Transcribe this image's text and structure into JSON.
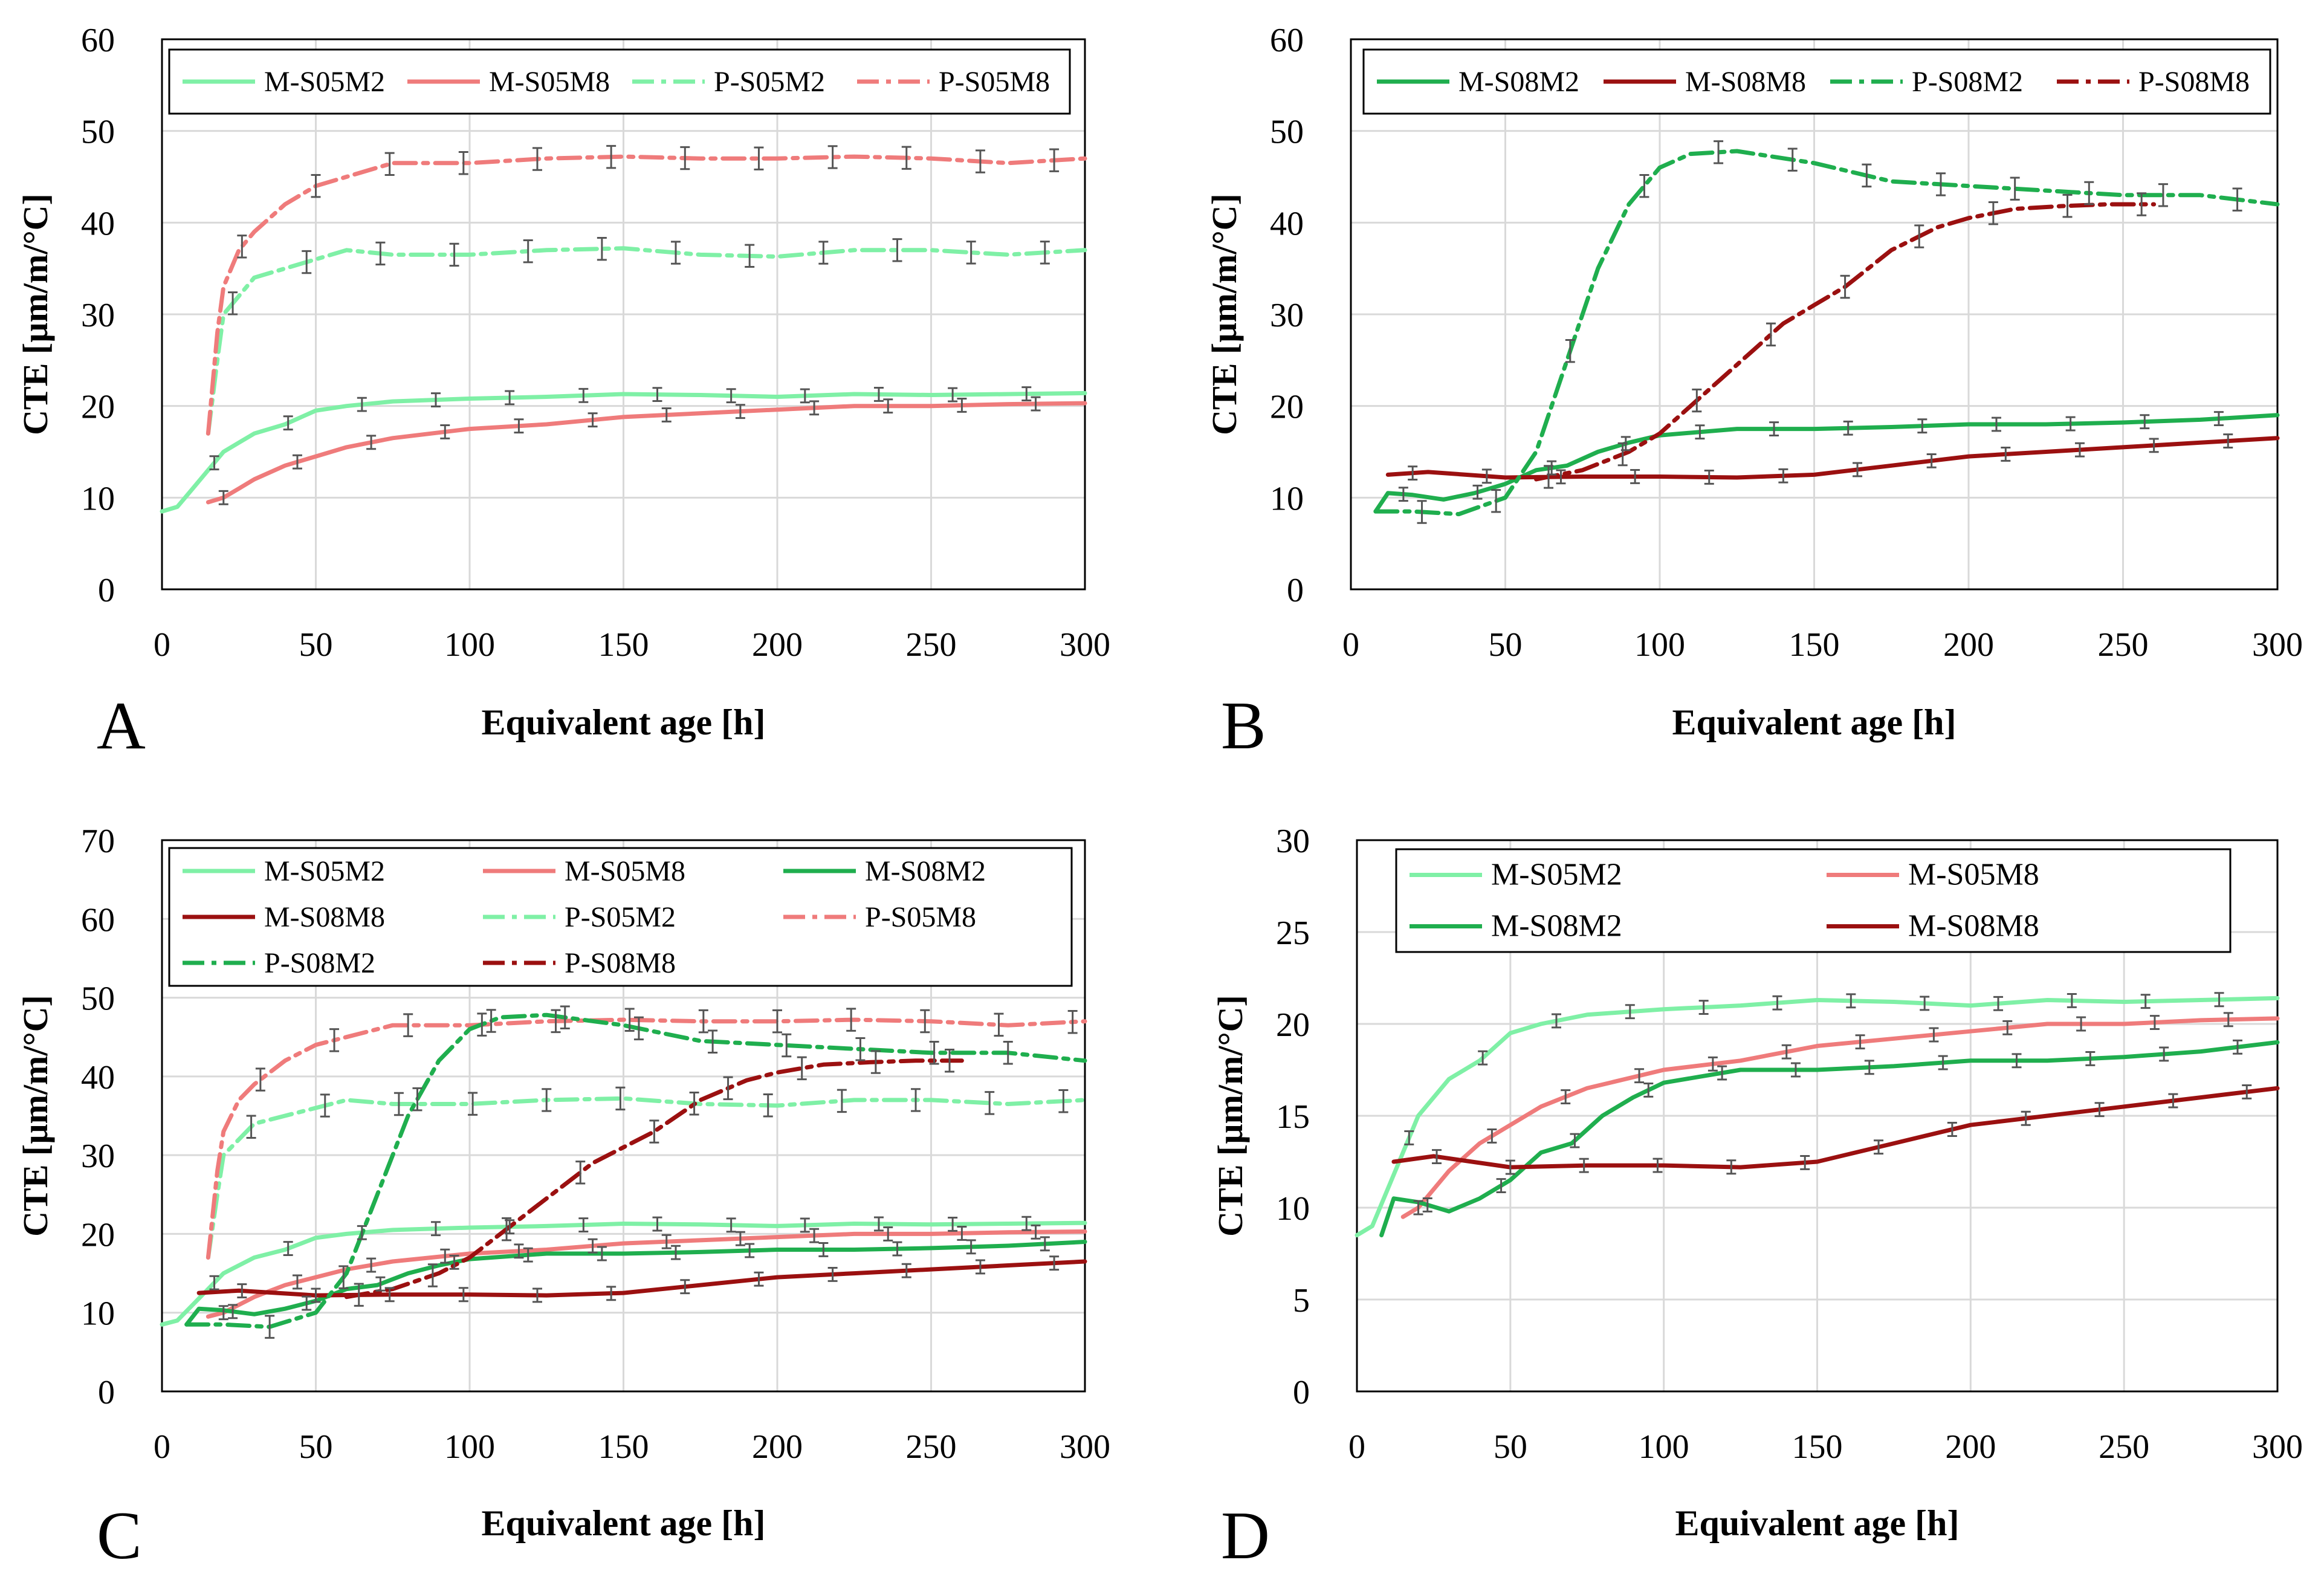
{
  "colors": {
    "M-S05M2": "#7ff0a6",
    "M-S05M8": "#ef7b7b",
    "M-S08M2": "#1fae4e",
    "M-S08M8": "#9b1010",
    "P-S05M2": "#7ff0a6",
    "P-S05M8": "#ef7b7b",
    "P-S08M2": "#1fae4e",
    "P-S08M8": "#9b1010"
  },
  "chart_data": [
    {
      "panel": "A",
      "type": "line",
      "xlabel": "Equivalent age [h]",
      "ylabel": "CTE [µm/m/°C]",
      "xlim": [
        0,
        300
      ],
      "ylim": [
        0,
        60
      ],
      "xticks": [
        "0",
        "50",
        "100",
        "150",
        "200",
        "250",
        "300"
      ],
      "yticks": [
        "0",
        "10",
        "20",
        "30",
        "40",
        "50",
        "60"
      ],
      "legend": [
        "M-S05M2",
        "M-S05M8",
        "P-S05M2",
        "P-S05M8"
      ],
      "series": [
        {
          "name": "M-S05M2",
          "dash": "solid",
          "x": [
            0,
            5,
            10,
            15,
            20,
            25,
            30,
            40,
            50,
            60,
            75,
            100,
            125,
            150,
            175,
            200,
            225,
            250,
            275,
            300
          ],
          "y": [
            8.5,
            9,
            11,
            13,
            15,
            16,
            17,
            18,
            19.5,
            20,
            20.5,
            20.8,
            21,
            21.3,
            21.2,
            21,
            21.3,
            21.2,
            21.3,
            21.4
          ]
        },
        {
          "name": "M-S05M8",
          "dash": "solid",
          "x": [
            15,
            20,
            25,
            30,
            40,
            50,
            60,
            75,
            100,
            125,
            150,
            175,
            200,
            225,
            250,
            275,
            300
          ],
          "y": [
            9.5,
            10,
            11,
            12,
            13.5,
            14.5,
            15.5,
            16.5,
            17.5,
            18,
            18.8,
            19.2,
            19.6,
            20,
            20,
            20.2,
            20.3
          ]
        },
        {
          "name": "P-S05M2",
          "dash": "dashdot",
          "x": [
            15,
            18,
            20,
            25,
            30,
            40,
            50,
            60,
            75,
            100,
            125,
            150,
            175,
            200,
            225,
            250,
            275,
            300
          ],
          "y": [
            17,
            25,
            30,
            32,
            34,
            35,
            36,
            37,
            36.5,
            36.5,
            37,
            37.2,
            36.5,
            36.3,
            37,
            37,
            36.5,
            37
          ]
        },
        {
          "name": "P-S05M8",
          "dash": "dashdot",
          "x": [
            15,
            18,
            20,
            25,
            30,
            40,
            50,
            60,
            75,
            100,
            125,
            150,
            175,
            200,
            225,
            250,
            275,
            300
          ],
          "y": [
            17,
            28,
            33,
            37,
            39,
            42,
            44,
            45,
            46.5,
            46.5,
            47,
            47.2,
            47,
            47,
            47.2,
            47,
            46.5,
            47
          ]
        }
      ]
    },
    {
      "panel": "B",
      "type": "line",
      "xlabel": "Equivalent age [h]",
      "ylabel": "CTE [µm/m/°C]",
      "xlim": [
        0,
        300
      ],
      "ylim": [
        0,
        60
      ],
      "xticks": [
        "0",
        "50",
        "100",
        "150",
        "200",
        "250",
        "300"
      ],
      "yticks": [
        "0",
        "10",
        "20",
        "30",
        "40",
        "50",
        "60"
      ],
      "legend": [
        "M-S08M2",
        "M-S08M8",
        "P-S08M2",
        "P-S08M8"
      ],
      "series": [
        {
          "name": "M-S08M2",
          "dash": "solid",
          "x": [
            8,
            12,
            20,
            30,
            40,
            50,
            60,
            70,
            80,
            90,
            100,
            125,
            150,
            175,
            200,
            225,
            250,
            275,
            300
          ],
          "y": [
            8.5,
            10.5,
            10.3,
            9.8,
            10.5,
            11.5,
            13,
            13.5,
            15,
            16,
            16.8,
            17.5,
            17.5,
            17.7,
            18,
            18,
            18.2,
            18.5,
            19
          ]
        },
        {
          "name": "M-S08M8",
          "dash": "solid",
          "x": [
            12,
            25,
            50,
            75,
            100,
            125,
            150,
            175,
            200,
            225,
            250,
            275,
            300
          ],
          "y": [
            12.5,
            12.8,
            12.2,
            12.3,
            12.3,
            12.2,
            12.5,
            13.5,
            14.5,
            15,
            15.5,
            16,
            16.5
          ]
        },
        {
          "name": "P-S08M2",
          "dash": "dashdot",
          "x": [
            8,
            20,
            35,
            50,
            60,
            70,
            80,
            90,
            100,
            110,
            125,
            150,
            175,
            200,
            225,
            250,
            275,
            300
          ],
          "y": [
            8.5,
            8.5,
            8.2,
            10,
            15,
            25,
            35,
            42,
            46,
            47.5,
            47.8,
            46.5,
            44.5,
            44,
            43.5,
            43,
            43,
            42
          ]
        },
        {
          "name": "P-S08M8",
          "dash": "dashdot",
          "x": [
            60,
            75,
            90,
            100,
            110,
            120,
            130,
            140,
            150,
            160,
            175,
            190,
            200,
            215,
            230,
            245,
            260
          ],
          "y": [
            12,
            13,
            15,
            17,
            20,
            23,
            26,
            29,
            31,
            33,
            37,
            39.5,
            40.5,
            41.5,
            41.8,
            42,
            42
          ]
        }
      ]
    },
    {
      "panel": "C",
      "type": "line",
      "xlabel": "Equivalent age [h]",
      "ylabel": "CTE [µm/m/°C]",
      "xlim": [
        0,
        300
      ],
      "ylim": [
        0,
        70
      ],
      "xticks": [
        "0",
        "50",
        "100",
        "150",
        "200",
        "250",
        "300"
      ],
      "yticks": [
        "0",
        "10",
        "20",
        "30",
        "40",
        "50",
        "60",
        "70"
      ],
      "legend": [
        "M-S05M2",
        "M-S05M8",
        "M-S08M2",
        "M-S08M8",
        "P-S05M2",
        "P-S05M8",
        "P-S08M2",
        "P-S08M8"
      ],
      "series": [
        {
          "name": "M-S05M2",
          "dash": "solid",
          "x": [
            0,
            5,
            10,
            15,
            20,
            25,
            30,
            40,
            50,
            60,
            75,
            100,
            125,
            150,
            175,
            200,
            225,
            250,
            275,
            300
          ],
          "y": [
            8.5,
            9,
            11,
            13,
            15,
            16,
            17,
            18,
            19.5,
            20,
            20.5,
            20.8,
            21,
            21.3,
            21.2,
            21,
            21.3,
            21.2,
            21.3,
            21.4
          ]
        },
        {
          "name": "M-S05M8",
          "dash": "solid",
          "x": [
            15,
            20,
            25,
            30,
            40,
            50,
            60,
            75,
            100,
            125,
            150,
            175,
            200,
            225,
            250,
            275,
            300
          ],
          "y": [
            9.5,
            10,
            11,
            12,
            13.5,
            14.5,
            15.5,
            16.5,
            17.5,
            18,
            18.8,
            19.2,
            19.6,
            20,
            20,
            20.2,
            20.3
          ]
        },
        {
          "name": "M-S08M2",
          "dash": "solid",
          "x": [
            8,
            12,
            20,
            30,
            40,
            50,
            60,
            70,
            80,
            90,
            100,
            125,
            150,
            175,
            200,
            225,
            250,
            275,
            300
          ],
          "y": [
            8.5,
            10.5,
            10.3,
            9.8,
            10.5,
            11.5,
            13,
            13.5,
            15,
            16,
            16.8,
            17.5,
            17.5,
            17.7,
            18,
            18,
            18.2,
            18.5,
            19
          ]
        },
        {
          "name": "M-S08M8",
          "dash": "solid",
          "x": [
            12,
            25,
            50,
            75,
            100,
            125,
            150,
            175,
            200,
            225,
            250,
            275,
            300
          ],
          "y": [
            12.5,
            12.8,
            12.2,
            12.3,
            12.3,
            12.2,
            12.5,
            13.5,
            14.5,
            15,
            15.5,
            16,
            16.5
          ]
        },
        {
          "name": "P-S05M2",
          "dash": "dashdot",
          "x": [
            15,
            18,
            20,
            25,
            30,
            40,
            50,
            60,
            75,
            100,
            125,
            150,
            175,
            200,
            225,
            250,
            275,
            300
          ],
          "y": [
            17,
            25,
            30,
            32,
            34,
            35,
            36,
            37,
            36.5,
            36.5,
            37,
            37.2,
            36.5,
            36.3,
            37,
            37,
            36.5,
            37
          ]
        },
        {
          "name": "P-S05M8",
          "dash": "dashdot",
          "x": [
            15,
            18,
            20,
            25,
            30,
            40,
            50,
            60,
            75,
            100,
            125,
            150,
            175,
            200,
            225,
            250,
            275,
            300
          ],
          "y": [
            17,
            28,
            33,
            37,
            39,
            42,
            44,
            45,
            46.5,
            46.5,
            47,
            47.2,
            47,
            47,
            47.2,
            47,
            46.5,
            47
          ]
        },
        {
          "name": "P-S08M2",
          "dash": "dashdot",
          "x": [
            8,
            20,
            35,
            50,
            60,
            70,
            80,
            90,
            100,
            110,
            125,
            150,
            175,
            200,
            225,
            250,
            275,
            300
          ],
          "y": [
            8.5,
            8.5,
            8.2,
            10,
            15,
            25,
            35,
            42,
            46,
            47.5,
            47.8,
            46.5,
            44.5,
            44,
            43.5,
            43,
            43,
            42
          ]
        },
        {
          "name": "P-S08M8",
          "dash": "dashdot",
          "x": [
            60,
            75,
            90,
            100,
            110,
            120,
            130,
            140,
            150,
            160,
            175,
            190,
            200,
            215,
            230,
            245,
            260
          ],
          "y": [
            12,
            13,
            15,
            17,
            20,
            23,
            26,
            29,
            31,
            33,
            37,
            39.5,
            40.5,
            41.5,
            41.8,
            42,
            42
          ]
        }
      ]
    },
    {
      "panel": "D",
      "type": "line",
      "xlabel": "Equivalent age [h]",
      "ylabel": "CTE [µm/m/°C]",
      "xlim": [
        0,
        300
      ],
      "ylim": [
        0,
        30
      ],
      "xticks": [
        "0",
        "50",
        "100",
        "150",
        "200",
        "250",
        "300"
      ],
      "yticks": [
        "0",
        "5",
        "10",
        "15",
        "20",
        "25",
        "30"
      ],
      "legend": [
        "M-S05M2",
        "M-S05M8",
        "M-S08M2",
        "M-S08M8"
      ],
      "series": [
        {
          "name": "M-S05M2",
          "dash": "solid",
          "x": [
            0,
            5,
            10,
            15,
            20,
            25,
            30,
            40,
            50,
            60,
            75,
            100,
            125,
            150,
            175,
            200,
            225,
            250,
            275,
            300
          ],
          "y": [
            8.5,
            9,
            11,
            13,
            15,
            16,
            17,
            18,
            19.5,
            20,
            20.5,
            20.8,
            21,
            21.3,
            21.2,
            21,
            21.3,
            21.2,
            21.3,
            21.4
          ]
        },
        {
          "name": "M-S05M8",
          "dash": "solid",
          "x": [
            15,
            20,
            25,
            30,
            40,
            50,
            60,
            75,
            100,
            125,
            150,
            175,
            200,
            225,
            250,
            275,
            300
          ],
          "y": [
            9.5,
            10,
            11,
            12,
            13.5,
            14.5,
            15.5,
            16.5,
            17.5,
            18,
            18.8,
            19.2,
            19.6,
            20,
            20,
            20.2,
            20.3
          ]
        },
        {
          "name": "M-S08M2",
          "dash": "solid",
          "x": [
            8,
            12,
            20,
            30,
            40,
            50,
            60,
            70,
            80,
            90,
            100,
            125,
            150,
            175,
            200,
            225,
            250,
            275,
            300
          ],
          "y": [
            8.5,
            10.5,
            10.3,
            9.8,
            10.5,
            11.5,
            13,
            13.5,
            15,
            16,
            16.8,
            17.5,
            17.5,
            17.7,
            18,
            18,
            18.2,
            18.5,
            19
          ]
        },
        {
          "name": "M-S08M8",
          "dash": "solid",
          "x": [
            12,
            25,
            50,
            75,
            100,
            125,
            150,
            175,
            200,
            225,
            250,
            275,
            300
          ],
          "y": [
            12.5,
            12.8,
            12.2,
            12.3,
            12.3,
            12.2,
            12.5,
            13.5,
            14.5,
            15,
            15.5,
            16,
            16.5
          ]
        }
      ]
    }
  ]
}
